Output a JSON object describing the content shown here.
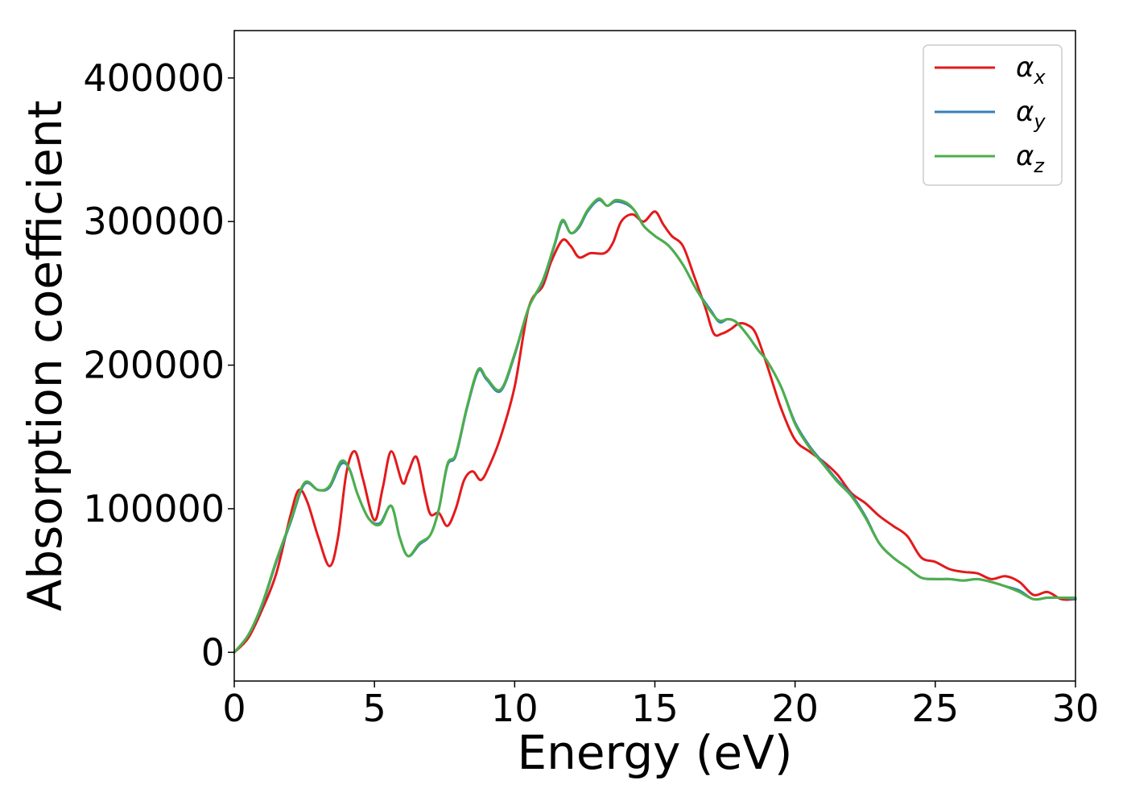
{
  "chart_data": {
    "type": "line",
    "title": "",
    "xlabel": "Energy (eV)",
    "ylabel": "Absorption coefficient",
    "xlim": [
      0,
      30
    ],
    "ylim": [
      -20000,
      433000
    ],
    "xticks": [
      0,
      5,
      10,
      15,
      20,
      25,
      30
    ],
    "xtick_labels": [
      "0",
      "5",
      "10",
      "15",
      "20",
      "25",
      "30"
    ],
    "yticks": [
      0,
      100000,
      200000,
      300000,
      400000
    ],
    "ytick_labels": [
      "0",
      "100000",
      "200000",
      "300000",
      "400000"
    ],
    "grid": false,
    "legend_position": "top-right",
    "series": [
      {
        "name": "αx",
        "symbol": "α",
        "subscript": "x",
        "color": "#e31a1c",
        "x": [
          0,
          0.5,
          1,
          1.5,
          2,
          2.3,
          2.6,
          3,
          3.4,
          3.7,
          4,
          4.3,
          4.6,
          5,
          5.3,
          5.6,
          6,
          6.2,
          6.5,
          6.8,
          7,
          7.3,
          7.6,
          7.9,
          8.2,
          8.5,
          8.8,
          9.1,
          9.5,
          10,
          10.5,
          11,
          11.3,
          11.7,
          12,
          12.3,
          12.7,
          13.2,
          13.5,
          13.8,
          14.2,
          14.6,
          15,
          15.3,
          15.6,
          16,
          16.4,
          16.8,
          17.1,
          17.4,
          17.7,
          18,
          18.3,
          18.6,
          19,
          19.5,
          20,
          20.5,
          21,
          21.5,
          22,
          22.5,
          23,
          23.5,
          24,
          24.5,
          25,
          25.5,
          26,
          26.5,
          27,
          27.5,
          28,
          28.5,
          29,
          29.5,
          30
        ],
        "y": [
          0,
          10000,
          30000,
          55000,
          95000,
          113000,
          105000,
          80000,
          60000,
          80000,
          125000,
          140000,
          120000,
          92000,
          115000,
          140000,
          118000,
          125000,
          136000,
          110000,
          96000,
          97000,
          88000,
          100000,
          120000,
          126000,
          120000,
          130000,
          150000,
          185000,
          240000,
          255000,
          272000,
          287000,
          283000,
          275000,
          278000,
          278000,
          285000,
          300000,
          305000,
          300000,
          307000,
          298000,
          290000,
          283000,
          262000,
          240000,
          222000,
          222000,
          225000,
          229000,
          228000,
          222000,
          200000,
          170000,
          148000,
          140000,
          133000,
          124000,
          111000,
          104000,
          95000,
          88000,
          81000,
          66000,
          63000,
          58000,
          56000,
          55000,
          51000,
          53000,
          49000,
          40000,
          42000,
          37000,
          37000
        ]
      },
      {
        "name": "αy",
        "symbol": "α",
        "subscript": "y",
        "color": "#377eb8",
        "x": [
          0,
          0.5,
          1,
          1.5,
          2,
          2.5,
          3,
          3.4,
          3.8,
          4.1,
          4.4,
          4.8,
          5.2,
          5.6,
          5.9,
          6.2,
          6.6,
          7,
          7.3,
          7.6,
          7.9,
          8.3,
          8.7,
          9,
          9.5,
          10,
          10.5,
          11,
          11.4,
          11.7,
          12,
          12.3,
          12.6,
          13,
          13.3,
          13.6,
          14,
          14.3,
          14.6,
          15,
          15.5,
          16,
          16.5,
          17,
          17.3,
          17.6,
          17.9,
          18.3,
          18.7,
          19,
          19.5,
          20,
          20.5,
          21,
          21.5,
          22,
          22.5,
          23,
          23.5,
          24,
          24.5,
          25,
          25.5,
          26,
          26.5,
          27,
          27.5,
          28,
          28.5,
          29,
          29.5,
          30
        ],
        "y": [
          0,
          12000,
          33000,
          63000,
          90000,
          117000,
          113000,
          115000,
          131000,
          128000,
          110000,
          93000,
          90000,
          102000,
          80000,
          67000,
          75000,
          82000,
          100000,
          130000,
          137000,
          170000,
          196000,
          190000,
          182000,
          207000,
          240000,
          258000,
          282000,
          300000,
          292000,
          296000,
          307000,
          315000,
          311000,
          314000,
          312000,
          307000,
          297000,
          290000,
          283000,
          270000,
          252000,
          238000,
          230000,
          232000,
          230000,
          221000,
          210000,
          203000,
          185000,
          160000,
          144000,
          132000,
          120000,
          110000,
          95000,
          76000,
          66000,
          59000,
          52000,
          51000,
          51000,
          50000,
          51000,
          49000,
          46000,
          43000,
          37000,
          38000,
          38000,
          37000
        ]
      },
      {
        "name": "αz",
        "symbol": "α",
        "subscript": "z",
        "color": "#4daf4a",
        "x": [
          0,
          0.5,
          1,
          1.5,
          2,
          2.5,
          3,
          3.4,
          3.8,
          4.1,
          4.4,
          4.8,
          5.2,
          5.6,
          5.9,
          6.2,
          6.6,
          7,
          7.3,
          7.6,
          7.9,
          8.3,
          8.7,
          9,
          9.5,
          10,
          10.5,
          11,
          11.4,
          11.7,
          12,
          12.3,
          12.6,
          13,
          13.3,
          13.6,
          14,
          14.3,
          14.6,
          15,
          15.5,
          16,
          16.5,
          17,
          17.3,
          17.6,
          17.9,
          18.3,
          18.7,
          19,
          19.5,
          20,
          20.5,
          21,
          21.5,
          22,
          22.5,
          23,
          23.5,
          24,
          24.5,
          25,
          25.5,
          26,
          26.5,
          27,
          27.5,
          28,
          28.5,
          29,
          29.5,
          30
        ],
        "y": [
          0,
          12000,
          34000,
          64000,
          91000,
          118000,
          113000,
          116000,
          133000,
          128000,
          110000,
          93000,
          89000,
          102000,
          80000,
          67000,
          76000,
          82000,
          100000,
          131000,
          138000,
          171000,
          197000,
          191000,
          183000,
          208000,
          240000,
          259000,
          283000,
          301000,
          292000,
          297000,
          308000,
          316000,
          311000,
          315000,
          313000,
          307000,
          297000,
          290000,
          283000,
          270000,
          252000,
          237000,
          231000,
          232000,
          230000,
          221000,
          210000,
          203000,
          185000,
          159000,
          143000,
          131000,
          119000,
          109000,
          94000,
          76000,
          66000,
          59000,
          52000,
          51000,
          51000,
          50000,
          51000,
          49000,
          46000,
          42000,
          37000,
          38000,
          38000,
          38000
        ]
      }
    ]
  }
}
